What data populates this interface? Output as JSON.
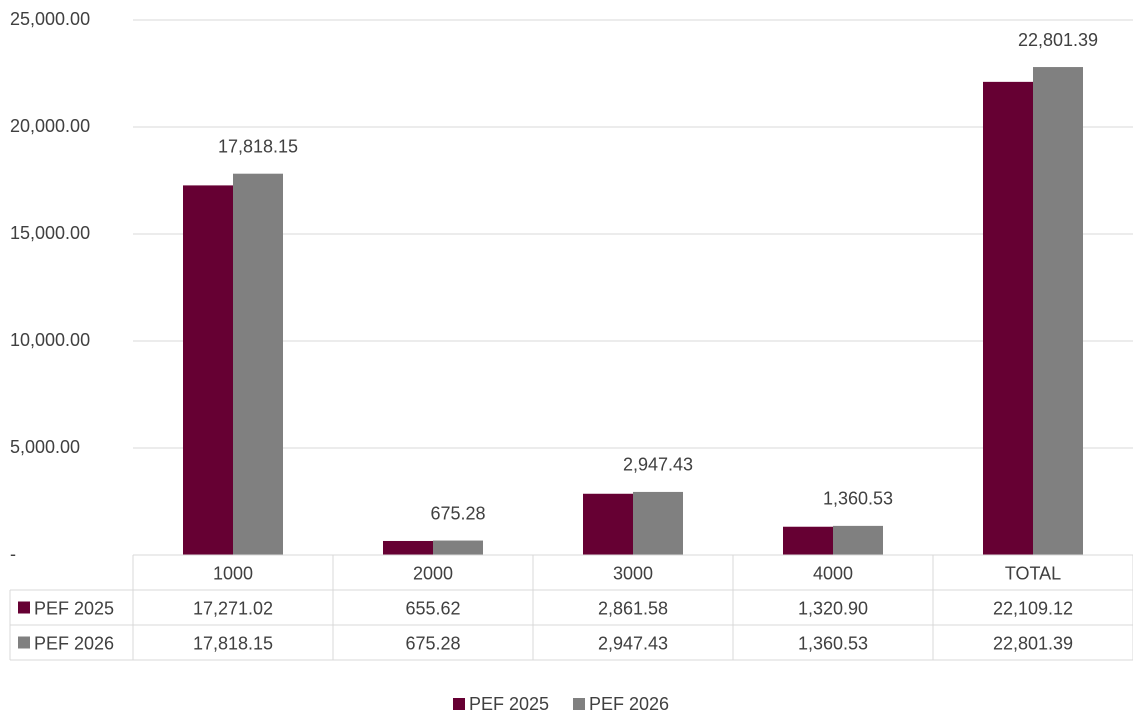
{
  "chart_data": {
    "type": "bar",
    "categories": [
      "1000",
      "2000",
      "3000",
      "4000",
      "TOTAL"
    ],
    "series": [
      {
        "name": "PEF 2025",
        "color": "#660033",
        "values": [
          17271.02,
          655.62,
          2861.58,
          1320.9,
          22109.12
        ],
        "value_labels": [
          "17,271.02",
          "655.62",
          "2,861.58",
          "1,320.90",
          "22,109.12"
        ]
      },
      {
        "name": "PEF 2026",
        "color": "#808080",
        "values": [
          17818.15,
          675.28,
          2947.43,
          1360.53,
          22801.39
        ],
        "value_labels": [
          "17,818.15",
          "675.28",
          "2,947.43",
          "1,360.53",
          "22,801.39"
        ]
      }
    ],
    "ylim": [
      0,
      25000
    ],
    "yticks": [
      {
        "value": 0,
        "label": "-"
      },
      {
        "value": 5000,
        "label": "5,000.00"
      },
      {
        "value": 10000,
        "label": "10,000.00"
      },
      {
        "value": 15000,
        "label": "15,000.00"
      },
      {
        "value": 20000,
        "label": "20,000.00"
      },
      {
        "value": 25000,
        "label": "25,000.00"
      }
    ],
    "grid": true,
    "legend": "bottom"
  }
}
